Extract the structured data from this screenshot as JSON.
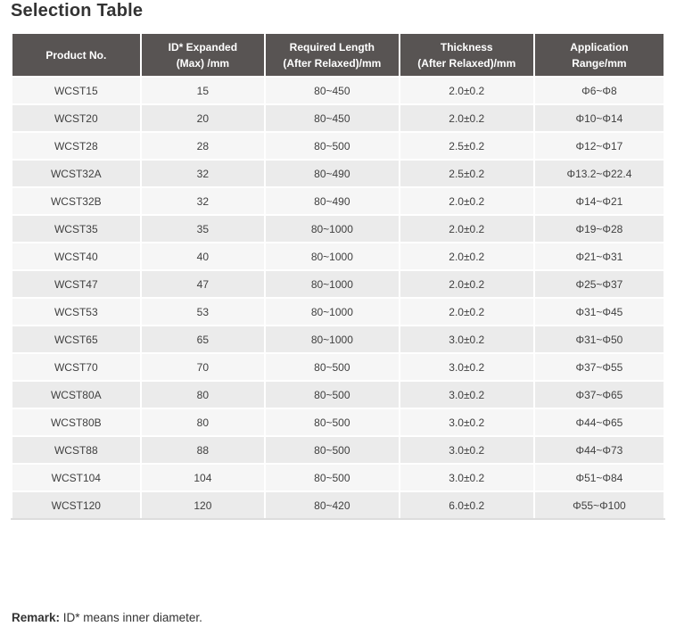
{
  "page": {
    "title": "Selection Table"
  },
  "colors": {
    "header_background": "#585453",
    "header_text": "#ffffff",
    "row_light": "#f6f6f6",
    "row_dark": "#ebebeb",
    "body_text": "#404040",
    "title_text": "#333333"
  },
  "table": {
    "columns": [
      {
        "lines": "Product No."
      },
      {
        "lines": "ID* Expanded\n(Max) /mm"
      },
      {
        "lines": "Required Length\n(After Relaxed)/mm"
      },
      {
        "lines": "Thickness\n(After Relaxed)/mm"
      },
      {
        "lines": "Application\nRange/mm"
      }
    ],
    "rows": [
      [
        "WCST15",
        "15",
        "80~450",
        "2.0±0.2",
        "Φ6~Φ8"
      ],
      [
        "WCST20",
        "20",
        "80~450",
        "2.0±0.2",
        "Φ10~Φ14"
      ],
      [
        "WCST28",
        "28",
        "80~500",
        "2.5±0.2",
        "Φ12~Φ17"
      ],
      [
        "WCST32A",
        "32",
        "80~490",
        "2.5±0.2",
        "Φ13.2~Φ22.4"
      ],
      [
        "WCST32B",
        "32",
        "80~490",
        "2.0±0.2",
        "Φ14~Φ21"
      ],
      [
        "WCST35",
        "35",
        "80~1000",
        "2.0±0.2",
        "Φ19~Φ28"
      ],
      [
        "WCST40",
        "40",
        "80~1000",
        "2.0±0.2",
        "Φ21~Φ31"
      ],
      [
        "WCST47",
        "47",
        "80~1000",
        "2.0±0.2",
        "Φ25~Φ37"
      ],
      [
        "WCST53",
        "53",
        "80~1000",
        "2.0±0.2",
        "Φ31~Φ45"
      ],
      [
        "WCST65",
        "65",
        "80~1000",
        "3.0±0.2",
        "Φ31~Φ50"
      ],
      [
        "WCST70",
        "70",
        "80~500",
        "3.0±0.2",
        "Φ37~Φ55"
      ],
      [
        "WCST80A",
        "80",
        "80~500",
        "3.0±0.2",
        "Φ37~Φ65"
      ],
      [
        "WCST80B",
        "80",
        "80~500",
        "3.0±0.2",
        "Φ44~Φ65"
      ],
      [
        "WCST88",
        "88",
        "80~500",
        "3.0±0.2",
        "Φ44~Φ73"
      ],
      [
        "WCST104",
        "104",
        "80~500",
        "3.0±0.2",
        "Φ51~Φ84"
      ],
      [
        "WCST120",
        "120",
        "80~420",
        "6.0±0.2",
        "Φ55~Φ100"
      ]
    ]
  },
  "remark": {
    "label": "Remark:",
    "text": " ID* means inner diameter."
  }
}
